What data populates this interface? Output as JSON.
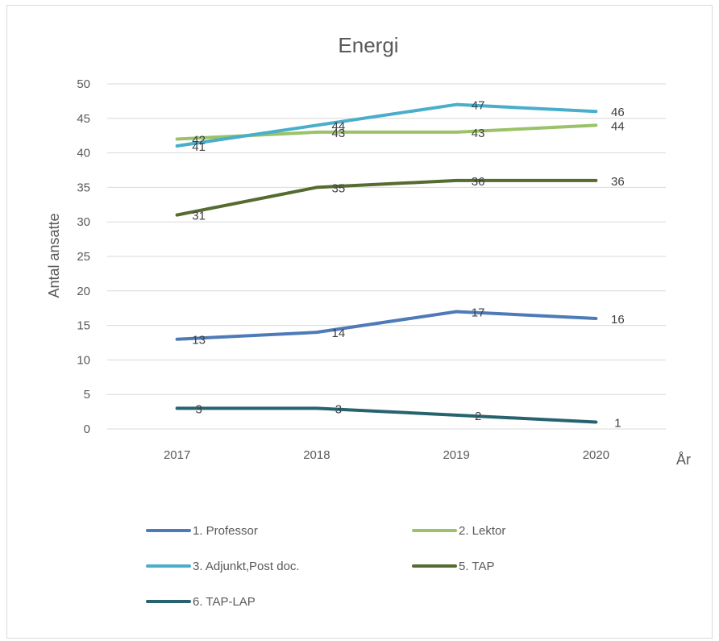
{
  "chart_data": {
    "type": "line",
    "title": "Energi",
    "xlabel": "År",
    "ylabel": "Antal ansatte",
    "x": [
      "2017",
      "2018",
      "2019",
      "2020"
    ],
    "ylim": [
      0,
      50
    ],
    "yticks": [
      "0",
      "5",
      "10",
      "15",
      "20",
      "25",
      "30",
      "35",
      "40",
      "45",
      "50"
    ],
    "grid": true,
    "legend_position": "bottom",
    "series": [
      {
        "name": "1. Professor",
        "values": [
          13,
          14,
          17,
          16
        ],
        "labels": [
          "13",
          "14",
          "17",
          "16"
        ],
        "color": "#4f7ab8"
      },
      {
        "name": "2. Lektor",
        "values": [
          42,
          43,
          43,
          44
        ],
        "labels": [
          "42",
          "43",
          "43",
          "44"
        ],
        "color": "#9bc268"
      },
      {
        "name": "3. Adjunkt,Post doc.",
        "values": [
          41,
          44,
          47,
          46
        ],
        "labels": [
          "41",
          "44",
          "47",
          "46"
        ],
        "color": "#4aaecb"
      },
      {
        "name": "5. TAP",
        "values": [
          31,
          35,
          36,
          36
        ],
        "labels": [
          "31",
          "35",
          "36",
          "36"
        ],
        "color": "#556b2f"
      },
      {
        "name": "6. TAP-LAP",
        "values": [
          3,
          3,
          2,
          1
        ],
        "labels": [
          "3",
          "3",
          "2",
          "1"
        ],
        "color": "#27626f"
      }
    ]
  }
}
